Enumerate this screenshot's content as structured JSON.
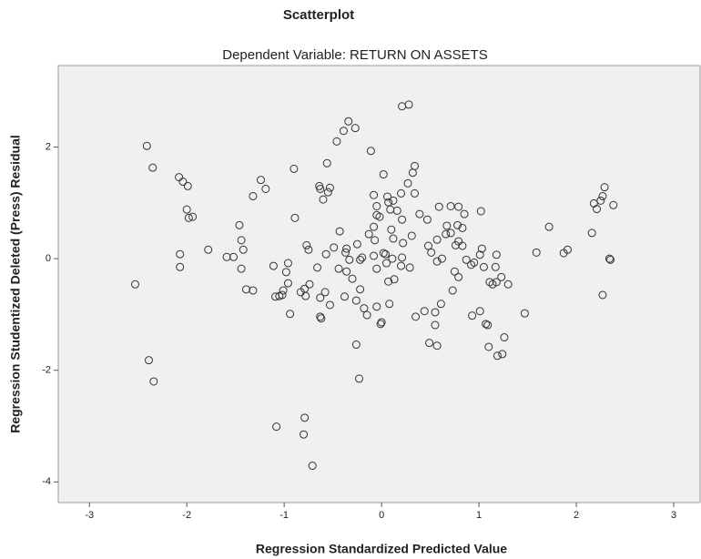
{
  "chart_data": {
    "type": "scatter",
    "title": "Scatterplot",
    "subtitle": "Dependent Variable: RETURN ON ASSETS",
    "x_label": "Regression Standardized Predicted Value",
    "y_label": "Regression Studentized Deleted (Press) Residual",
    "xlim": [
      -3.32,
      3.28
    ],
    "ylim": [
      -4.37,
      3.46
    ],
    "xticks": [
      -3,
      -2,
      -1,
      0,
      1,
      2,
      3
    ],
    "yticks": [
      -4,
      -2,
      0,
      2
    ],
    "color": "#333333",
    "grid": false,
    "x": [
      -2.53,
      -2.41,
      -2.35,
      -2.39,
      -2.34,
      -2.08,
      -2.04,
      -1.99,
      -2.0,
      -1.98,
      -1.94,
      -2.07,
      -2.07,
      -1.78,
      -1.59,
      -1.52,
      -1.46,
      -1.44,
      -1.42,
      -1.44,
      -1.39,
      -1.32,
      -1.32,
      -1.24,
      -1.19,
      -1.11,
      -1.09,
      -1.05,
      -1.08,
      -0.96,
      -0.98,
      -1.01,
      -0.96,
      -0.94,
      -1.02,
      -0.9,
      -0.89,
      -0.83,
      -0.79,
      -0.78,
      -0.77,
      -0.74,
      -0.79,
      -0.8,
      -0.71,
      -0.75,
      -0.66,
      -0.63,
      -0.63,
      -0.62,
      -0.64,
      -0.63,
      -0.6,
      -0.56,
      -0.55,
      -0.53,
      -0.57,
      -0.58,
      -0.53,
      -0.49,
      -0.46,
      -0.44,
      -0.43,
      -0.38,
      -0.37,
      -0.36,
      -0.39,
      -0.34,
      -0.33,
      -0.36,
      -0.3,
      -0.27,
      -0.26,
      -0.26,
      -0.22,
      -0.2,
      -0.25,
      -0.22,
      -0.23,
      -0.18,
      -0.15,
      -0.13,
      -0.11,
      -0.08,
      -0.08,
      -0.08,
      -0.07,
      -0.05,
      -0.05,
      -0.05,
      -0.05,
      -0.02,
      -0.01,
      0,
      0.02,
      0.02,
      0.04,
      0.05,
      0.07,
      0.06,
      0.07,
      0.09,
      0.1,
      0.11,
      0.13,
      0.08,
      0.12,
      0.12,
      0.16,
      0.2,
      0.2,
      0.21,
      0.22,
      0.21,
      0.21,
      0.28,
      0.27,
      0.32,
      0.34,
      0.34,
      0.31,
      0.29,
      0.35,
      0.39,
      0.44,
      0.47,
      0.48,
      0.49,
      0.51,
      0.55,
      0.55,
      0.57,
      0.57,
      0.57,
      0.59,
      0.61,
      0.62,
      0.66,
      0.67,
      0.71,
      0.73,
      0.71,
      0.75,
      0.76,
      0.78,
      0.79,
      0.79,
      0.79,
      0.83,
      0.83,
      0.85,
      0.87,
      0.92,
      0.93,
      0.95,
      1.01,
      1.01,
      1.02,
      1.03,
      1.05,
      1.07,
      1.09,
      1.1,
      1.11,
      1.14,
      1.18,
      1.17,
      1.18,
      1.19,
      1.24,
      1.23,
      1.26,
      1.3,
      1.47,
      1.59,
      1.72,
      1.87,
      1.91,
      2.16,
      2.18,
      2.21,
      2.25,
      2.29,
      2.27,
      2.27,
      2.34,
      2.35,
      2.38
    ],
    "values": [
      -0.46,
      2.02,
      1.63,
      -1.82,
      -2.2,
      1.46,
      1.38,
      1.3,
      0.88,
      0.73,
      0.75,
      0.08,
      -0.15,
      0.16,
      0.03,
      0.03,
      0.6,
      0.33,
      0.16,
      -0.18,
      -0.55,
      -0.57,
      1.12,
      1.41,
      1.25,
      -0.13,
      -0.68,
      -0.67,
      -3.01,
      -0.08,
      -0.24,
      -0.57,
      -0.44,
      -0.99,
      -0.65,
      1.61,
      0.73,
      -0.6,
      -0.54,
      -0.67,
      0.24,
      -0.46,
      -2.85,
      -3.15,
      -3.71,
      0.16,
      -0.16,
      -0.7,
      -1.04,
      -1.07,
      1.3,
      1.25,
      1.06,
      1.71,
      1.19,
      1.27,
      0.08,
      -0.6,
      -0.83,
      0.2,
      2.1,
      -0.18,
      0.49,
      -0.68,
      0.11,
      0.18,
      2.29,
      2.46,
      -0.02,
      -0.23,
      -0.36,
      2.34,
      -0.75,
      -1.54,
      -0.02,
      0.02,
      0.26,
      -0.55,
      -2.15,
      -0.89,
      -1.01,
      0.44,
      1.93,
      1.14,
      0.57,
      0.05,
      0.33,
      -0.18,
      -0.86,
      0.94,
      0.78,
      0.75,
      -1.17,
      -1.14,
      1.51,
      0.1,
      0.08,
      -0.08,
      -0.41,
      1.11,
      1.01,
      0.88,
      0.52,
      0,
      -0.37,
      -0.81,
      1.04,
      0.36,
      0.86,
      1.17,
      -0.13,
      0.02,
      0.28,
      0.7,
      2.73,
      2.76,
      1.35,
      1.54,
      1.66,
      1.17,
      0.41,
      -0.16,
      -1.04,
      0.8,
      -0.94,
      0.7,
      0.23,
      -1.51,
      0.11,
      -0.96,
      -1.19,
      -1.56,
      0.34,
      -0.05,
      0.93,
      -0.81,
      0,
      0.44,
      0.59,
      0.94,
      -0.57,
      0.46,
      -0.23,
      0.24,
      0.6,
      -0.33,
      0.93,
      0.31,
      0.23,
      0.55,
      0.8,
      -0.02,
      -0.11,
      -1.02,
      -0.07,
      -0.94,
      0.07,
      0.85,
      0.18,
      -0.15,
      -1.17,
      -1.19,
      -1.58,
      -0.42,
      -0.46,
      0.07,
      -0.15,
      -0.42,
      -1.74,
      -1.71,
      -0.33,
      -1.41,
      -0.46,
      -0.98,
      0.11,
      0.57,
      0.1,
      0.16,
      0.46,
      0.99,
      0.89,
      1.04,
      1.28,
      1.12,
      -0.65,
      0,
      -0.02,
      0.96
    ]
  }
}
